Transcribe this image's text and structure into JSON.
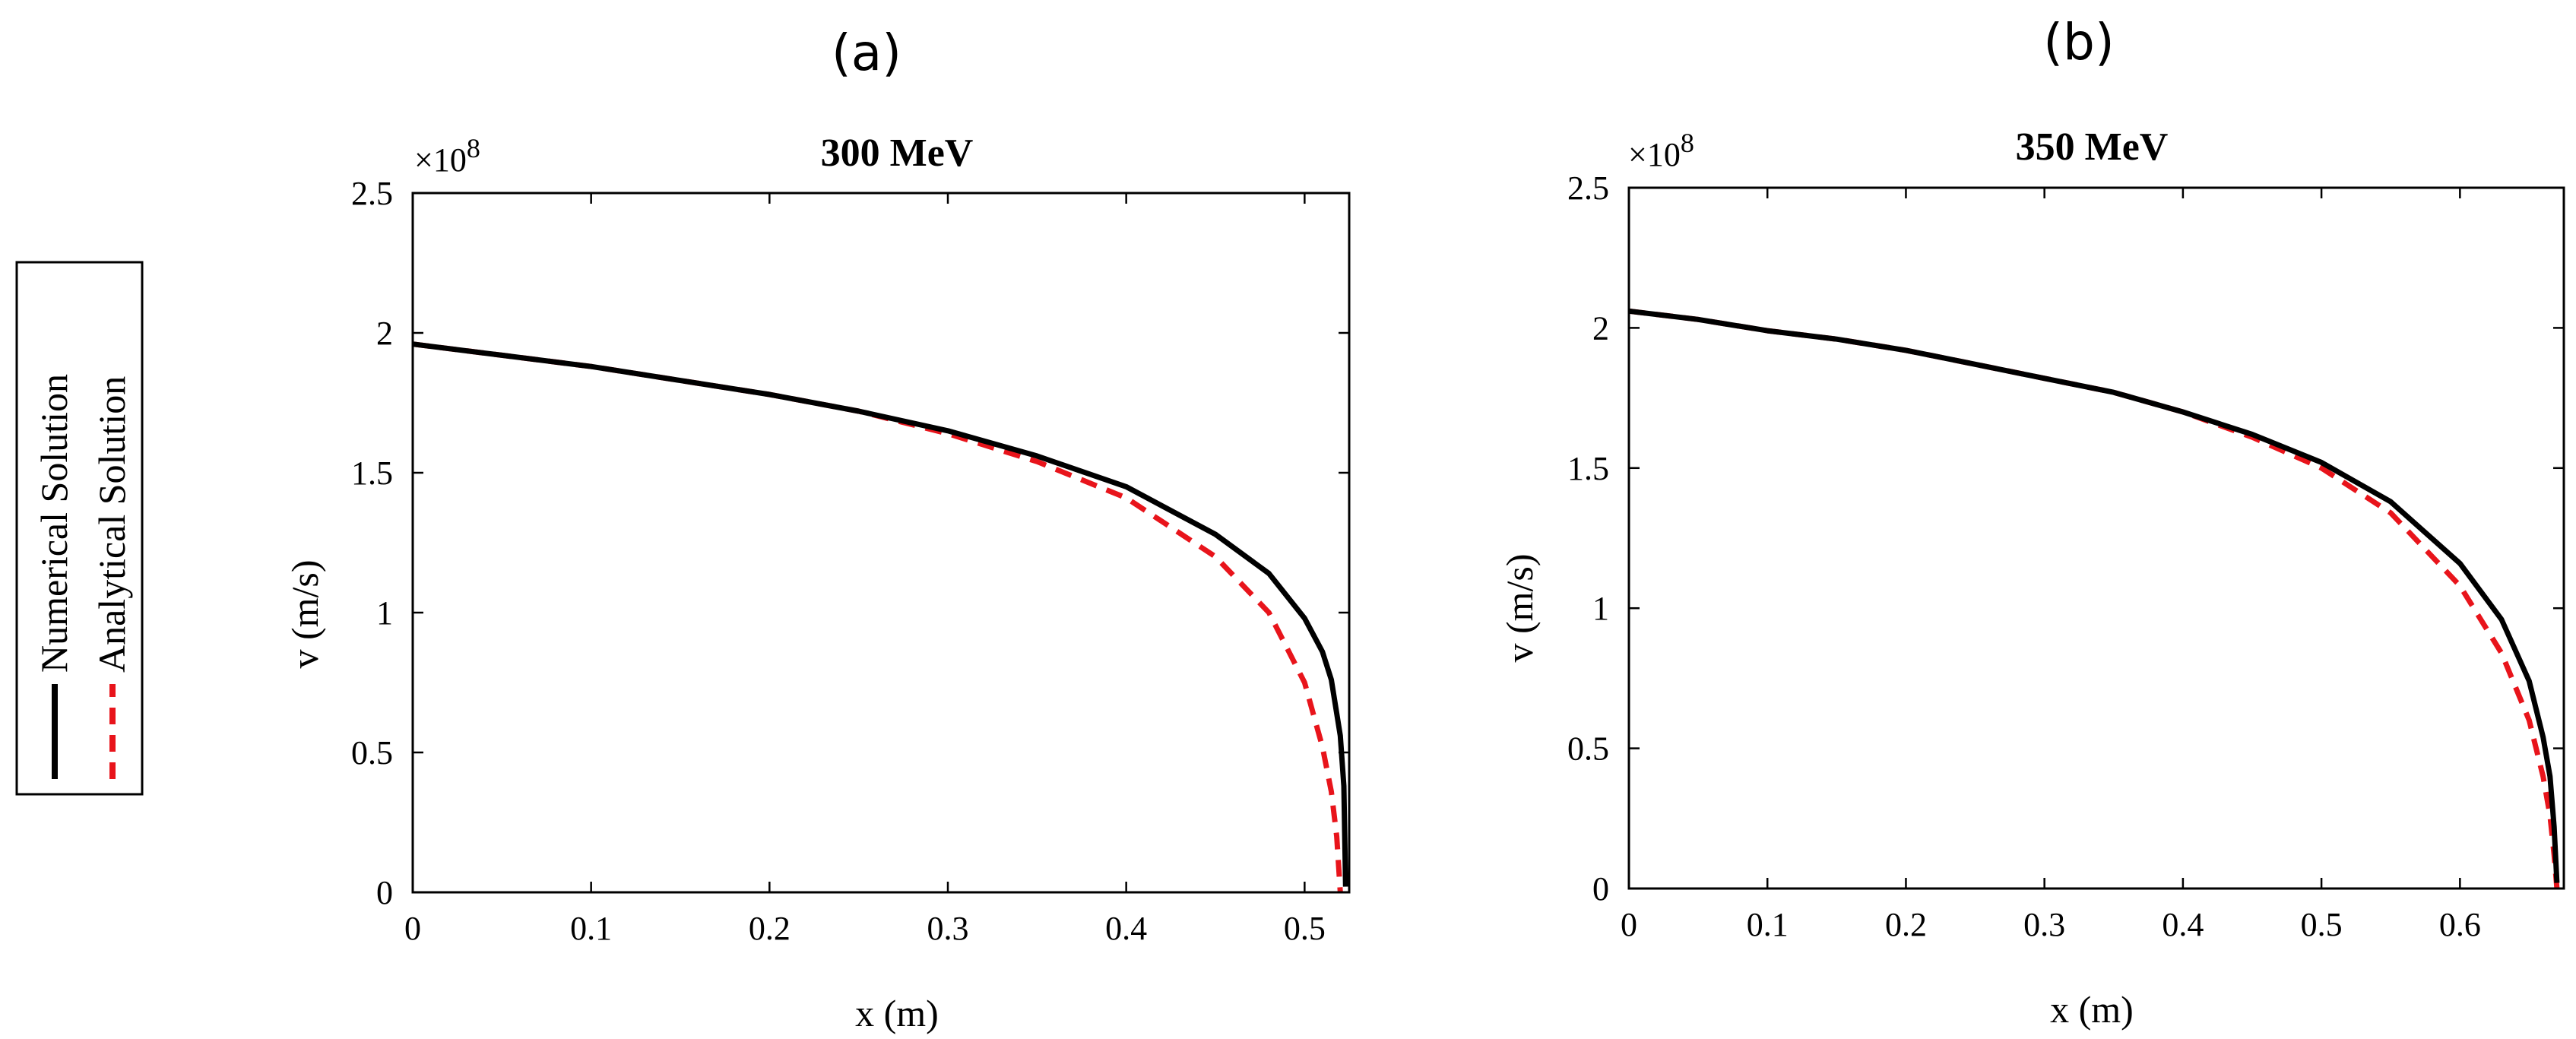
{
  "panel_labels": [
    "(a)",
    "(b)"
  ],
  "legend": {
    "entries": [
      {
        "label": "Numerical Solution",
        "color": "#000000",
        "style": "solid"
      },
      {
        "label": "Analytical Solution",
        "color": "#e8141b",
        "style": "dashed"
      }
    ],
    "placement": "left, rotated vertical"
  },
  "chart_data": [
    {
      "type": "line",
      "title": "300 MeV",
      "xlabel": "x (m)",
      "ylabel": "v (m/s)",
      "y_exponent_label": "×10",
      "y_exponent_power": "8",
      "xlim": [
        0,
        0.525
      ],
      "ylim": [
        0,
        2.5
      ],
      "x_ticks": [
        0,
        0.1,
        0.2,
        0.3,
        0.4,
        0.5
      ],
      "x_tick_labels": [
        "0",
        "0.1",
        "0.2",
        "0.3",
        "0.4",
        "0.5"
      ],
      "y_ticks": [
        0,
        0.5,
        1,
        1.5,
        2,
        2.5
      ],
      "y_tick_labels": [
        "0",
        "0.5",
        "1",
        "1.5",
        "2",
        "2.5"
      ],
      "series": [
        {
          "name": "Numerical Solution",
          "x": [
            0,
            0.05,
            0.1,
            0.15,
            0.2,
            0.25,
            0.3,
            0.35,
            0.4,
            0.45,
            0.48,
            0.5,
            0.51,
            0.515,
            0.52,
            0.522,
            0.523
          ],
          "y": [
            1.96,
            1.92,
            1.88,
            1.83,
            1.78,
            1.72,
            1.65,
            1.56,
            1.45,
            1.28,
            1.14,
            0.98,
            0.86,
            0.76,
            0.56,
            0.38,
            0.02
          ]
        },
        {
          "name": "Analytical Solution",
          "x": [
            0,
            0.05,
            0.1,
            0.15,
            0.2,
            0.25,
            0.3,
            0.35,
            0.4,
            0.45,
            0.48,
            0.5,
            0.51,
            0.515,
            0.518,
            0.52
          ],
          "y": [
            1.96,
            1.92,
            1.88,
            1.83,
            1.78,
            1.72,
            1.64,
            1.54,
            1.41,
            1.2,
            1.0,
            0.75,
            0.52,
            0.36,
            0.2,
            0.0
          ]
        }
      ]
    },
    {
      "type": "line",
      "title": "350 MeV",
      "xlabel": "x (m)",
      "ylabel": "v (m/s)",
      "y_exponent_label": "×10",
      "y_exponent_power": "8",
      "xlim": [
        0,
        0.675
      ],
      "ylim": [
        0,
        2.5
      ],
      "x_ticks": [
        0,
        0.1,
        0.2,
        0.3,
        0.4,
        0.5,
        0.6
      ],
      "x_tick_labels": [
        "0",
        "0.1",
        "0.2",
        "0.3",
        "0.4",
        "0.5",
        "0.6"
      ],
      "y_ticks": [
        0,
        0.5,
        1,
        1.5,
        2,
        2.5
      ],
      "y_tick_labels": [
        "0",
        "0.5",
        "1",
        "1.5",
        "2",
        "2.5"
      ],
      "series": [
        {
          "name": "Numerical Solution",
          "x": [
            0,
            0.05,
            0.1,
            0.15,
            0.2,
            0.25,
            0.3,
            0.35,
            0.4,
            0.45,
            0.5,
            0.55,
            0.6,
            0.63,
            0.65,
            0.66,
            0.665,
            0.668,
            0.67
          ],
          "y": [
            2.06,
            2.03,
            1.99,
            1.96,
            1.92,
            1.87,
            1.82,
            1.77,
            1.7,
            1.62,
            1.52,
            1.38,
            1.16,
            0.96,
            0.74,
            0.54,
            0.4,
            0.22,
            0.02
          ]
        },
        {
          "name": "Analytical Solution",
          "x": [
            0,
            0.05,
            0.1,
            0.15,
            0.2,
            0.25,
            0.3,
            0.35,
            0.4,
            0.45,
            0.5,
            0.55,
            0.6,
            0.63,
            0.65,
            0.66,
            0.665,
            0.668,
            0.67
          ],
          "y": [
            2.06,
            2.03,
            1.99,
            1.96,
            1.92,
            1.87,
            1.82,
            1.77,
            1.7,
            1.61,
            1.5,
            1.34,
            1.08,
            0.84,
            0.6,
            0.4,
            0.26,
            0.12,
            0.0
          ]
        }
      ]
    }
  ]
}
